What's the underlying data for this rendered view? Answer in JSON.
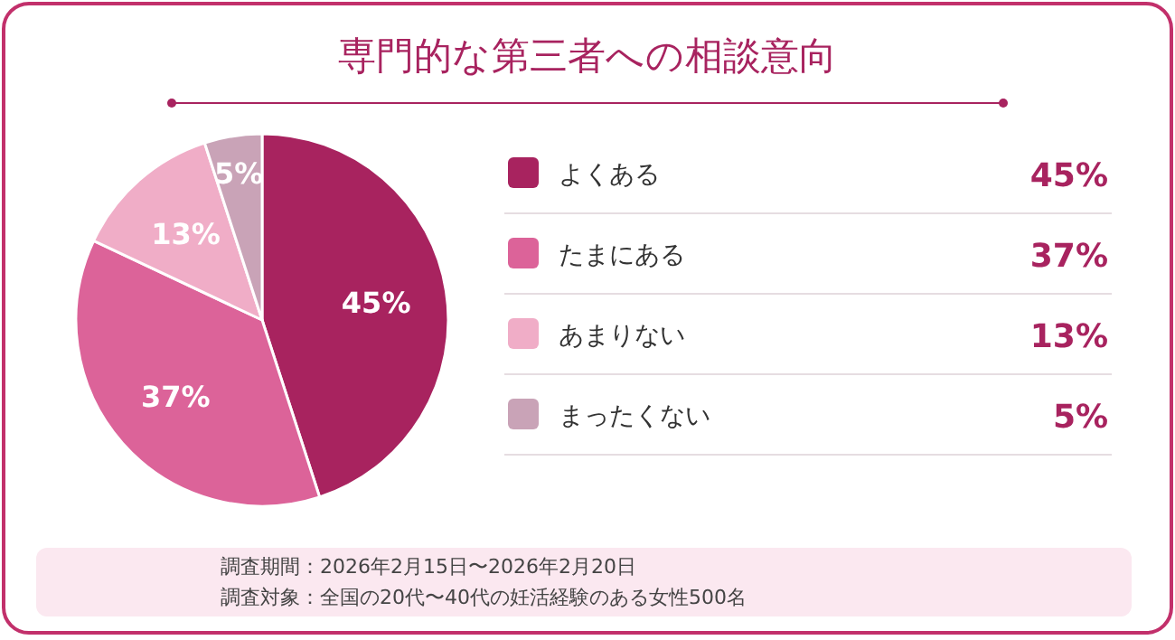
{
  "chart_data": {
    "type": "pie",
    "title": "専門的な第三者への相談意向",
    "categories": [
      "よくある",
      "たまにある",
      "あまりない",
      "まったくない"
    ],
    "values": [
      45,
      37,
      13,
      5
    ],
    "value_labels": [
      "45%",
      "37%",
      "13%",
      "5%"
    ],
    "colors": [
      "#a8235f",
      "#dc6399",
      "#f0adc7",
      "#c9a3b7"
    ],
    "legend": "right",
    "annotations": [
      "調査期間：2026年2月15日〜2026年2月20日",
      "調査対象：全国の20代〜40代の妊活経験のある女性500名"
    ]
  }
}
